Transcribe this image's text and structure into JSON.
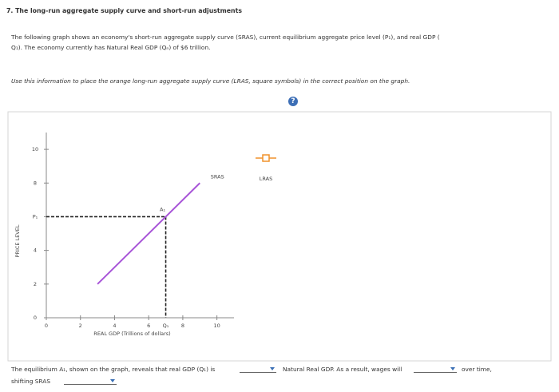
{
  "title": "7. The long-run aggregate supply curve and short-run adjustments",
  "intro": [
    "The following graph shows an economy's short-run aggregate supply curve (SRAS), current equilibrium aggregate price level (P₁), and real GDP (",
    "Q₁). The economy currently has Natural Real GDP (Qₙ) of $6 trillion."
  ],
  "instruction": "Use this information to place the orange long-run aggregate supply curve (LRAS, square symbols) in the correct position on the graph.",
  "help": "?",
  "chart_data": {
    "type": "line",
    "x_label": "REAL GDP (Trillions of dollars)",
    "y_label": "PRICE LEVEL",
    "xlim": [
      0,
      11
    ],
    "ylim": [
      0,
      11
    ],
    "xticks": [
      0,
      2,
      4,
      6,
      8,
      10
    ],
    "yticks": [
      0,
      2,
      4,
      {
        "value": 6,
        "label": "P₁"
      },
      8,
      10
    ],
    "series": [
      {
        "name": "SRAS",
        "color": "#a855d8",
        "x": [
          3,
          9
        ],
        "values": [
          2,
          8
        ]
      }
    ],
    "equilibrium": {
      "label": "A₁",
      "x": 7,
      "y": 6,
      "x_tick_label": "Q₁"
    },
    "palette": {
      "name": "LRAS",
      "color": "#f0922b"
    }
  },
  "question": {
    "line1": [
      "The equilibrium A₁, shown on the graph, reveals that real GDP (Q₁) is",
      "Natural Real GDP. As a result, wages will",
      "over time,"
    ],
    "line2": "shifting SRAS"
  }
}
